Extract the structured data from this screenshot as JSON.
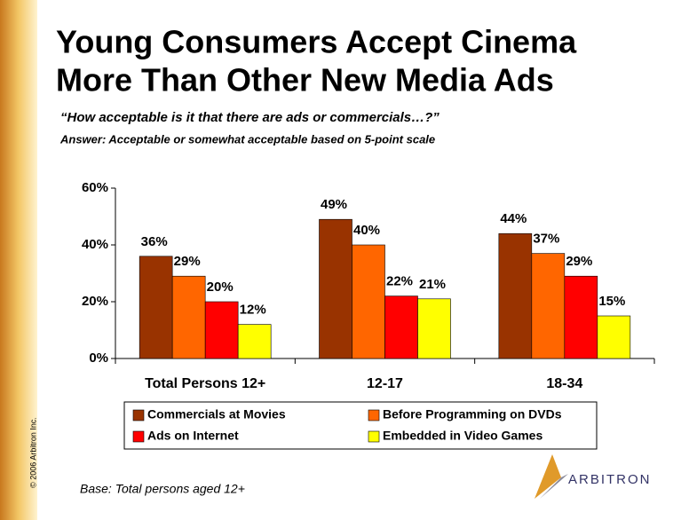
{
  "chart_data": {
    "type": "bar",
    "title": [
      "Young Consumers Accept Cinema",
      "More Than Other New Media Ads"
    ],
    "subtitle": "“How acceptable is it that there are ads or commercials…?”",
    "answer": "Answer:  Acceptable or somewhat acceptable based on 5-point scale",
    "note": "Base:  Total persons aged 12+",
    "copyright": "© 2006 Arbitron Inc.",
    "logo": "ARBITRON",
    "categories": [
      "Total Persons 12+",
      "12-17",
      "18-34"
    ],
    "series": [
      {
        "name": "Commercials at Movies",
        "color": "#993300",
        "values": [
          36,
          49,
          44
        ],
        "value_labels": [
          "36%",
          "49%",
          "44%"
        ]
      },
      {
        "name": "Before Programming on DVDs",
        "color": "#ff6600",
        "values": [
          29,
          40,
          37
        ],
        "value_labels": [
          "29%",
          "40%",
          "37%"
        ]
      },
      {
        "name": "Ads on Internet",
        "color": "#ff0000",
        "values": [
          20,
          22,
          29
        ],
        "value_labels": [
          "20%",
          "22%",
          "29%"
        ]
      },
      {
        "name": "Embedded in Video Games",
        "color": "#ffff00",
        "values": [
          12,
          21,
          15
        ],
        "value_labels": [
          "12%",
          "21%",
          "15%"
        ]
      }
    ],
    "ylim": [
      0,
      60
    ],
    "yticks": [
      {
        "value": 0,
        "label": "0%"
      },
      {
        "value": 20,
        "label": "20%"
      },
      {
        "value": 40,
        "label": "40%"
      },
      {
        "value": 60,
        "label": "60%"
      }
    ],
    "grid": false,
    "legend": "bottom"
  }
}
